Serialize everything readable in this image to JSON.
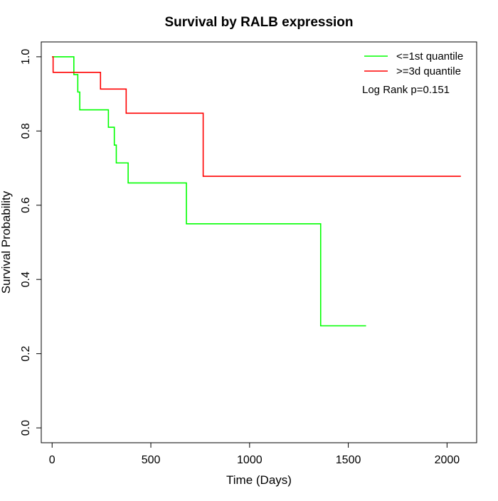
{
  "chart_data": {
    "type": "line",
    "title": "Survival by RALB expression",
    "xlabel": "Time (Days)",
    "ylabel": "Survival Probability",
    "xlim": [
      -55,
      2150
    ],
    "ylim": [
      -0.04,
      1.04
    ],
    "x_ticks": [
      {
        "value": 0,
        "label": "0"
      },
      {
        "value": 500,
        "label": "500"
      },
      {
        "value": 1000,
        "label": "1000"
      },
      {
        "value": 1500,
        "label": "1500"
      },
      {
        "value": 2000,
        "label": "2000"
      }
    ],
    "y_ticks": [
      {
        "value": 0.0,
        "label": "0.0"
      },
      {
        "value": 0.2,
        "label": "0.2"
      },
      {
        "value": 0.4,
        "label": "0.4"
      },
      {
        "value": 0.6,
        "label": "0.6"
      },
      {
        "value": 0.8,
        "label": "0.8"
      },
      {
        "value": 1.0,
        "label": "1.0"
      }
    ],
    "grid": false,
    "step": "post",
    "legend_position": "top-right",
    "series": [
      {
        "name": "<=1st quantile",
        "color": "#00ff00",
        "x": [
          0,
          110,
          130,
          140,
          285,
          315,
          325,
          385,
          680,
          1360,
          1590
        ],
        "y": [
          1.0,
          0.952,
          0.905,
          0.857,
          0.81,
          0.762,
          0.714,
          0.66,
          0.55,
          0.275,
          0.275
        ]
      },
      {
        "name": ">=3d quantile",
        "color": "#ff0000",
        "x": [
          0,
          5,
          245,
          375,
          765,
          2070
        ],
        "y": [
          1.0,
          0.958,
          0.913,
          0.848,
          0.678,
          0.678
        ]
      }
    ],
    "annotation": "Log Rank p=0.151"
  }
}
